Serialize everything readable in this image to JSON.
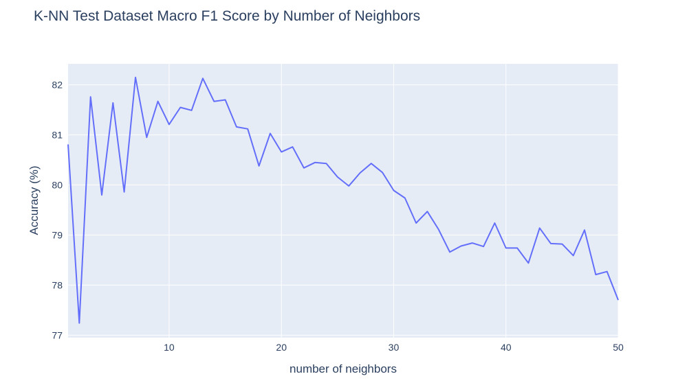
{
  "chart_data": {
    "type": "line",
    "title": "K-NN Test Dataset Macro F1 Score by Number of Neighbors",
    "xlabel": "number of neighbors",
    "ylabel": "Accuracy (%)",
    "xlim": [
      1,
      50
    ],
    "ylim": [
      76.95,
      82.42
    ],
    "xticks": [
      10,
      20,
      30,
      40,
      50
    ],
    "yticks": [
      77,
      78,
      79,
      80,
      81,
      82
    ],
    "grid": true,
    "colors": {
      "line": "#636efa",
      "plot_bg": "#e5ecf6",
      "grid": "#ffffff",
      "text": "#2a3f5f"
    },
    "series": [
      {
        "x": [
          1,
          2,
          3,
          4,
          5,
          6,
          7,
          8,
          9,
          10,
          11,
          12,
          13,
          14,
          15,
          16,
          17,
          18,
          19,
          20,
          21,
          22,
          23,
          24,
          25,
          26,
          27,
          28,
          29,
          30,
          31,
          32,
          33,
          34,
          35,
          36,
          37,
          38,
          39,
          40,
          41,
          42,
          43,
          44,
          45,
          46,
          47,
          48,
          49,
          50
        ],
        "values": [
          80.81,
          77.24,
          81.76,
          79.8,
          81.64,
          79.86,
          82.15,
          80.95,
          81.67,
          81.21,
          81.55,
          81.49,
          82.13,
          81.67,
          81.7,
          81.16,
          81.12,
          80.38,
          81.03,
          80.66,
          80.76,
          80.34,
          80.45,
          80.43,
          80.16,
          79.98,
          80.24,
          80.43,
          80.25,
          79.89,
          79.74,
          79.24,
          79.47,
          79.11,
          78.66,
          78.78,
          78.84,
          78.77,
          79.24,
          78.74,
          78.74,
          78.44,
          79.14,
          78.83,
          78.82,
          78.59,
          79.1,
          78.21,
          78.27,
          77.7
        ]
      }
    ]
  }
}
